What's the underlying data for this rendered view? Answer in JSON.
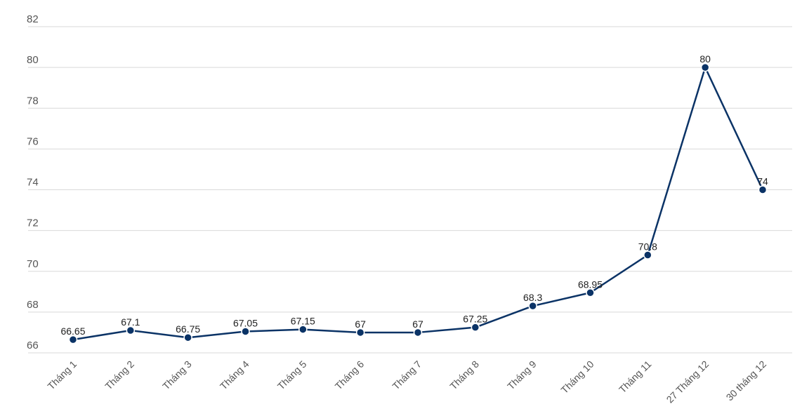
{
  "chart_data": {
    "type": "line",
    "title": "",
    "xlabel": "",
    "ylabel": "",
    "categories": [
      "Tháng 1",
      "Tháng 2",
      "Tháng 3",
      "Tháng 4",
      "Tháng 5",
      "Tháng 6",
      "Tháng 7",
      "Tháng 8",
      "Tháng 9",
      "Tháng 10",
      "Tháng 11",
      "27 Tháng 12",
      "30 tháng 12"
    ],
    "series": [
      {
        "values": [
          66.65,
          67.1,
          66.75,
          67.05,
          67.15,
          67,
          67,
          67.25,
          68.3,
          68.95,
          70.8,
          80,
          74
        ],
        "labels": [
          "66.65",
          "67.1",
          "66.75",
          "67.05",
          "67.15",
          "67",
          "67",
          "67.25",
          "68.3",
          "68.95",
          "70.8",
          "80",
          "74"
        ],
        "color": "#0b3366"
      }
    ],
    "ylim": [
      66,
      82
    ],
    "yticks": [
      66,
      68,
      70,
      72,
      74,
      76,
      78,
      80,
      82
    ],
    "ytick_labels": [
      "66",
      "68",
      "70",
      "72",
      "74",
      "76",
      "78",
      "80",
      "82"
    ],
    "grid": true,
    "legend": "none"
  }
}
